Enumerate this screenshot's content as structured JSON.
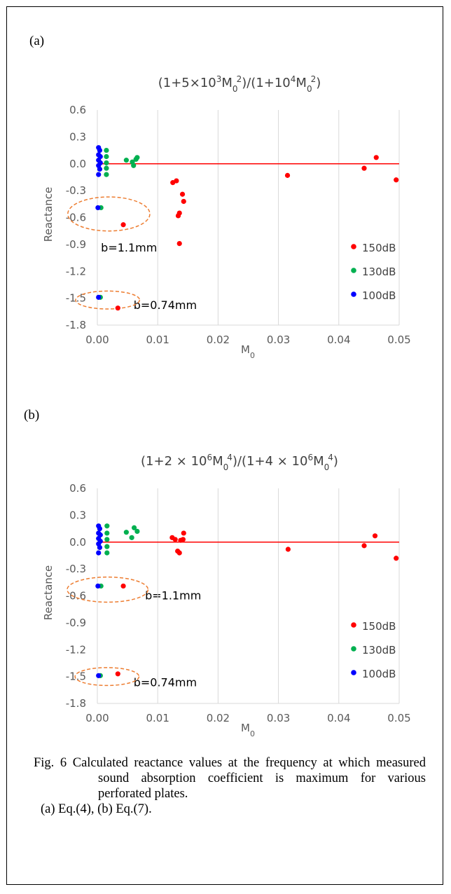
{
  "caption": {
    "main": "Fig. 6 Calculated reactance values at the frequency at which measured sound absorption coefficient is maximum for various perforated plates.",
    "sub": "(a) Eq.(4), (b) Eq.(7)."
  },
  "chart_data": [
    {
      "panel_label": "(a)",
      "type": "scatter",
      "title": "(1+5×10³M₀²)/(1+10⁴M₀²)",
      "title_parts": {
        "a": "(1+5×10",
        "sup1": "3",
        "b": "M",
        "sub1": "0",
        "sup2": "2",
        "c": ")/(1+10",
        "sup3": "4",
        "d": "M",
        "sub2": "0",
        "sup4": "2",
        "e": ")"
      },
      "xlabel": "M₀",
      "xlabel_parts": {
        "base": "M",
        "sub": "0"
      },
      "ylabel": "Reactance",
      "xlim": [
        0,
        0.05
      ],
      "ylim": [
        -1.8,
        0.6
      ],
      "x_ticks": [
        "0.00",
        "0.01",
        "0.02",
        "0.03",
        "0.04",
        "0.05"
      ],
      "y_ticks": [
        "0.6",
        "0.3",
        "0.0",
        "-0.3",
        "-0.6",
        "-0.9",
        "-1.2",
        "-1.5",
        "-1.8"
      ],
      "grid": "vertical",
      "reference_line": {
        "y": 0,
        "color": "#ff0000"
      },
      "legend": {
        "placement": "bottom-right"
      },
      "series": [
        {
          "name": "150dB",
          "color": "#ff0000",
          "points": [
            [
              0.0043,
              -0.68
            ],
            [
              0.0125,
              -0.21
            ],
            [
              0.0131,
              -0.19
            ],
            [
              0.0136,
              -0.55
            ],
            [
              0.0134,
              -0.58
            ],
            [
              0.0141,
              -0.34
            ],
            [
              0.0143,
              -0.42
            ],
            [
              0.0136,
              -0.89
            ],
            [
              0.0315,
              -0.13
            ],
            [
              0.0442,
              -0.05
            ],
            [
              0.0462,
              0.07
            ],
            [
              0.0495,
              -0.18
            ],
            [
              0.0034,
              -1.61
            ]
          ]
        },
        {
          "name": "130dB",
          "color": "#00b050",
          "points": [
            [
              0.0015,
              0.15
            ],
            [
              0.0015,
              0.08
            ],
            [
              0.0015,
              0.01
            ],
            [
              0.0015,
              -0.05
            ],
            [
              0.0015,
              -0.12
            ],
            [
              0.0048,
              0.04
            ],
            [
              0.0058,
              0.02
            ],
            [
              0.006,
              -0.02
            ],
            [
              0.0064,
              0.05
            ],
            [
              0.0066,
              0.07
            ],
            [
              0.0006,
              -0.49
            ],
            [
              0.0005,
              -1.49
            ]
          ]
        },
        {
          "name": "100dB",
          "color": "#0000ff",
          "points": [
            [
              0.0002,
              0.18
            ],
            [
              0.0004,
              0.15
            ],
            [
              0.0002,
              0.1
            ],
            [
              0.0005,
              0.08
            ],
            [
              0.0002,
              0.04
            ],
            [
              0.0005,
              0.01
            ],
            [
              0.0002,
              -0.02
            ],
            [
              0.0004,
              -0.06
            ],
            [
              0.0002,
              -0.12
            ],
            [
              0.0001,
              -0.49
            ],
            [
              0.0002,
              -1.49
            ]
          ]
        }
      ],
      "annotations": [
        {
          "text": "b=1.1mm",
          "at": [
            0.0006,
            -0.94
          ]
        },
        {
          "text": "b=0.74mm",
          "at": [
            0.006,
            -1.58
          ]
        }
      ],
      "highlight_ellipses": [
        {
          "cx": 0.0019,
          "cy": -0.56,
          "rx": 0.0068,
          "ry": 0.19
        },
        {
          "cx": 0.0017,
          "cy": -1.52,
          "rx": 0.0053,
          "ry": 0.1
        }
      ]
    },
    {
      "panel_label": "(b)",
      "type": "scatter",
      "title": "(1+2 × 10⁶M₀⁴)/(1+4 × 10⁶M₀⁴)",
      "title_parts": {
        "a": "(1+2 × 10",
        "sup1": "6",
        "b": "M",
        "sub1": "0",
        "sup2": "4",
        "c": ")/(1+4 × 10",
        "sup3": "6",
        "d": "M",
        "sub2": "0",
        "sup4": "4",
        "e": ")"
      },
      "xlabel": "M₀",
      "xlabel_parts": {
        "base": "M",
        "sub": "0"
      },
      "ylabel": "Reactance",
      "xlim": [
        0,
        0.05
      ],
      "ylim": [
        -1.8,
        0.6
      ],
      "x_ticks": [
        "0.00",
        "0.01",
        "0.02",
        "0.03",
        "0.04",
        "0.05"
      ],
      "y_ticks": [
        "0.6",
        "0.3",
        "0.0",
        "-0.3",
        "-0.6",
        "-0.9",
        "-1.2",
        "-1.5",
        "-1.8"
      ],
      "grid": "vertical",
      "reference_line": {
        "y": 0,
        "color": "#ff0000"
      },
      "legend": {
        "placement": "bottom-right"
      },
      "series": [
        {
          "name": "150dB",
          "color": "#ff0000",
          "points": [
            [
              0.0043,
              -0.49
            ],
            [
              0.0124,
              0.05
            ],
            [
              0.0129,
              0.03
            ],
            [
              0.0133,
              -0.1
            ],
            [
              0.0136,
              -0.12
            ],
            [
              0.0138,
              0.02
            ],
            [
              0.0143,
              0.1
            ],
            [
              0.0142,
              0.03
            ],
            [
              0.0316,
              -0.08
            ],
            [
              0.0442,
              -0.04
            ],
            [
              0.046,
              0.07
            ],
            [
              0.0495,
              -0.18
            ],
            [
              0.0034,
              -1.47
            ]
          ]
        },
        {
          "name": "130dB",
          "color": "#00b050",
          "points": [
            [
              0.0016,
              0.18
            ],
            [
              0.0016,
              0.1
            ],
            [
              0.0016,
              0.03
            ],
            [
              0.0016,
              -0.05
            ],
            [
              0.0016,
              -0.12
            ],
            [
              0.0048,
              0.11
            ],
            [
              0.0057,
              0.05
            ],
            [
              0.0061,
              0.16
            ],
            [
              0.0066,
              0.12
            ],
            [
              0.0006,
              -0.49
            ],
            [
              0.0005,
              -1.49
            ]
          ]
        },
        {
          "name": "100dB",
          "color": "#0000ff",
          "points": [
            [
              0.0002,
              0.18
            ],
            [
              0.0004,
              0.15
            ],
            [
              0.0002,
              0.1
            ],
            [
              0.0005,
              0.08
            ],
            [
              0.0002,
              0.04
            ],
            [
              0.0005,
              0.01
            ],
            [
              0.0002,
              -0.02
            ],
            [
              0.0004,
              -0.06
            ],
            [
              0.0002,
              -0.12
            ],
            [
              0.0001,
              -0.49
            ],
            [
              0.0002,
              -1.49
            ]
          ]
        }
      ],
      "annotations": [
        {
          "text": "b=1.1mm",
          "at": [
            0.0079,
            -0.6
          ]
        },
        {
          "text": "b=0.74mm",
          "at": [
            0.006,
            -1.57
          ]
        }
      ],
      "highlight_ellipses": [
        {
          "cx": 0.0017,
          "cy": -0.53,
          "rx": 0.0067,
          "ry": 0.14
        },
        {
          "cx": 0.0016,
          "cy": -1.5,
          "rx": 0.0053,
          "ry": 0.1
        }
      ]
    }
  ]
}
